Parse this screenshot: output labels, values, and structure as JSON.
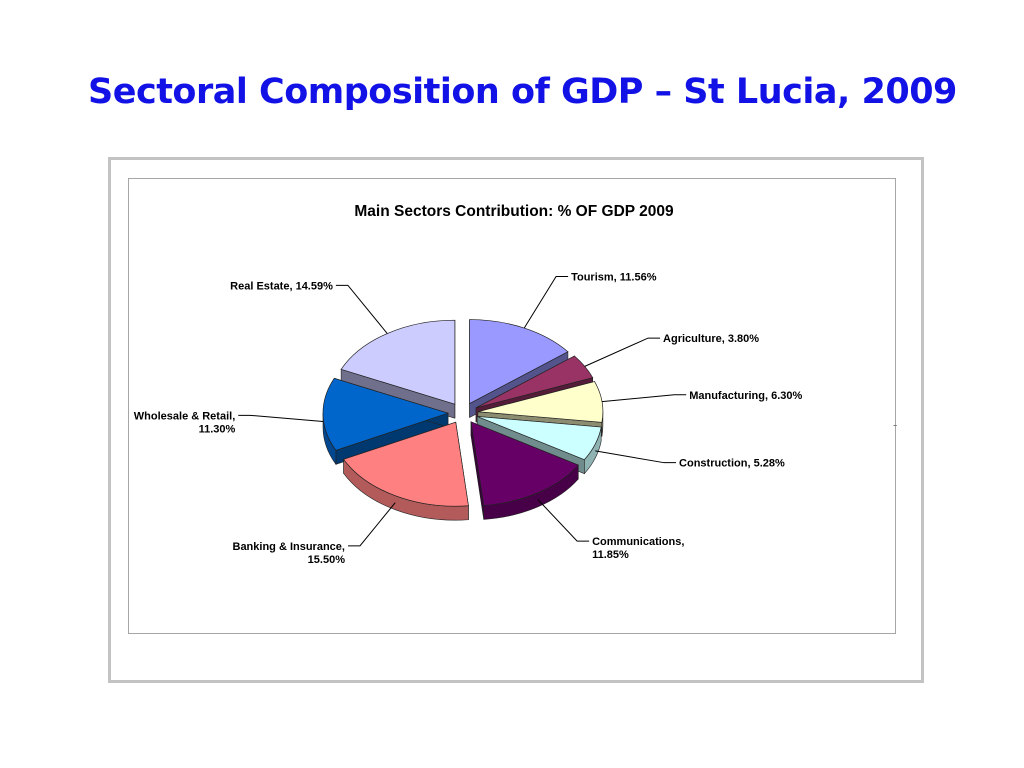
{
  "slide": {
    "title": "Sectoral Composition of GDP – St Lucia, 2009"
  },
  "chart_data": {
    "type": "pie",
    "title": "Main Sectors Contribution: % OF GDP 2009",
    "exploded": true,
    "three_d": true,
    "categories": [
      "Tourism",
      "Agriculture",
      "Manufacturing",
      "Construction",
      "Communications",
      "Banking & Insurance",
      "Wholesale & Retail",
      "Real Estate"
    ],
    "values": [
      11.56,
      3.8,
      6.3,
      5.28,
      11.85,
      15.5,
      11.3,
      14.59
    ],
    "labels": [
      [
        "Tourism, 11.56%"
      ],
      [
        "Agriculture, 3.80%"
      ],
      [
        "Manufacturing, 6.30%"
      ],
      [
        "Construction, 5.28%"
      ],
      [
        "Communications,",
        "11.85%"
      ],
      [
        "Banking & Insurance,",
        "15.50%"
      ],
      [
        "Wholesale & Retail,",
        "11.30%"
      ],
      [
        "Real Estate, 14.59%"
      ]
    ],
    "colors": [
      "#9999ff",
      "#993366",
      "#ffffcc",
      "#ccffff",
      "#660066",
      "#ff8080",
      "#0066cc",
      "#ccccff"
    ],
    "legend": "none"
  }
}
